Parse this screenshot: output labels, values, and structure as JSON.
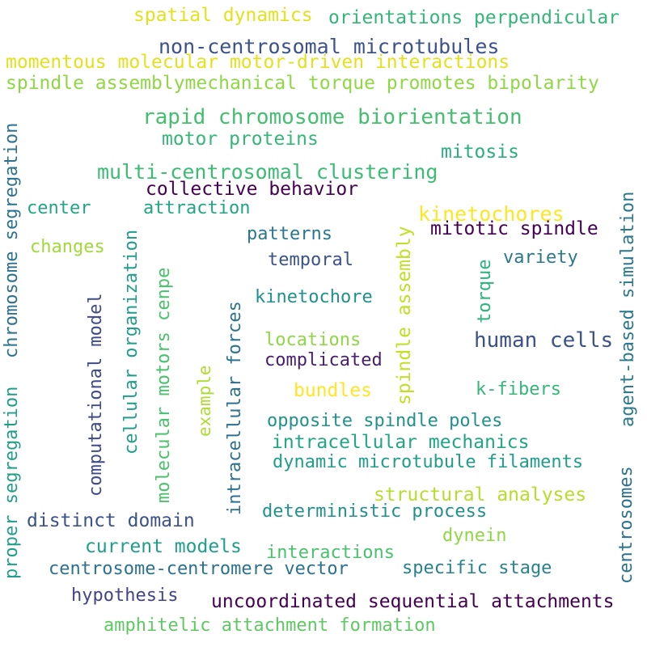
{
  "words": [
    {
      "id": "w1",
      "text": "spatial dynamics",
      "color": "#e3e11e"
    },
    {
      "id": "w2",
      "text": "orientations perpendicular",
      "color": "#34b679"
    },
    {
      "id": "w3",
      "text": "non-centrosomal microtubules",
      "color": "#3b528b"
    },
    {
      "id": "w4",
      "text": "momentous molecular motor-driven interactions",
      "color": "#e3e11e"
    },
    {
      "id": "w5",
      "text": "spindle assemblymechanical torque promotes bipolarity",
      "color": "#8fd744"
    },
    {
      "id": "w6",
      "text": "rapid chromosome biorientation",
      "color": "#44bf70"
    },
    {
      "id": "w7",
      "text": "motor proteins",
      "color": "#35b779"
    },
    {
      "id": "w8",
      "text": "mitosis",
      "color": "#29af7f"
    },
    {
      "id": "w9",
      "text": "multi-centrosomal clustering",
      "color": "#3cbb75"
    },
    {
      "id": "w10",
      "text": "collective behavior",
      "color": "#440154"
    },
    {
      "id": "w11",
      "text": "center",
      "color": "#21a685"
    },
    {
      "id": "w12",
      "text": "attraction",
      "color": "#21a685"
    },
    {
      "id": "w13",
      "text": "kinetochores",
      "color": "#fde725"
    },
    {
      "id": "w14",
      "text": "mitotic spindle",
      "color": "#440154"
    },
    {
      "id": "w15",
      "text": "changes",
      "color": "#a0da39"
    },
    {
      "id": "w16",
      "text": "patterns",
      "color": "#2a788e"
    },
    {
      "id": "w17",
      "text": "variety",
      "color": "#2a788e"
    },
    {
      "id": "w18",
      "text": "temporal",
      "color": "#3b528b"
    },
    {
      "id": "w19",
      "text": "kinetochore",
      "color": "#21918c"
    },
    {
      "id": "w20",
      "text": "human cells",
      "color": "#3b528b"
    },
    {
      "id": "w21",
      "text": "locations",
      "color": "#8fd744"
    },
    {
      "id": "w22",
      "text": "complicated",
      "color": "#481f70"
    },
    {
      "id": "w23",
      "text": "bundles",
      "color": "#fde725"
    },
    {
      "id": "w24",
      "text": "k-fibers",
      "color": "#35b779"
    },
    {
      "id": "w25",
      "text": "opposite spindle poles",
      "color": "#21918c"
    },
    {
      "id": "w26",
      "text": "intracellular mechanics",
      "color": "#21a685"
    },
    {
      "id": "w27",
      "text": "dynamic microtubule filaments",
      "color": "#1f9e89"
    },
    {
      "id": "w28",
      "text": "structural analyses",
      "color": "#b5de2b"
    },
    {
      "id": "w29",
      "text": "distinct domain",
      "color": "#3b528b"
    },
    {
      "id": "w30",
      "text": "deterministic process",
      "color": "#21918c"
    },
    {
      "id": "w31",
      "text": "dynein",
      "color": "#8fd744"
    },
    {
      "id": "w32",
      "text": "current models",
      "color": "#1f9e89"
    },
    {
      "id": "w33",
      "text": "interactions",
      "color": "#4ac16d"
    },
    {
      "id": "w34",
      "text": "centrosome-centromere vector",
      "color": "#2c728e"
    },
    {
      "id": "w35",
      "text": "specific stage",
      "color": "#26828e"
    },
    {
      "id": "w36",
      "text": "hypothesis",
      "color": "#414487"
    },
    {
      "id": "w37",
      "text": "uncoordinated sequential attachments",
      "color": "#440154"
    },
    {
      "id": "w38",
      "text": "amphitelic attachment formation",
      "color": "#5ec962"
    },
    {
      "id": "w39",
      "text": "chromosome segregation",
      "color": "#2c728e"
    },
    {
      "id": "w40",
      "text": "proper segregation",
      "color": "#1f9e89"
    },
    {
      "id": "w41",
      "text": "computational model",
      "color": "#3e4a89"
    },
    {
      "id": "w42",
      "text": "cellular organization",
      "color": "#1f9e89"
    },
    {
      "id": "w43",
      "text": "molecular motors cenpe",
      "color": "#4ac16d"
    },
    {
      "id": "w44",
      "text": "example",
      "color": "#addc30"
    },
    {
      "id": "w45",
      "text": "intracellular forces",
      "color": "#2c728e"
    },
    {
      "id": "w46",
      "text": "spindle assembly",
      "color": "#c2df23"
    },
    {
      "id": "w47",
      "text": "torque",
      "color": "#2db27d"
    },
    {
      "id": "w48",
      "text": "agent-based simulation",
      "color": "#2a788e"
    },
    {
      "id": "w49",
      "text": "centrosomes",
      "color": "#2c728e"
    }
  ]
}
